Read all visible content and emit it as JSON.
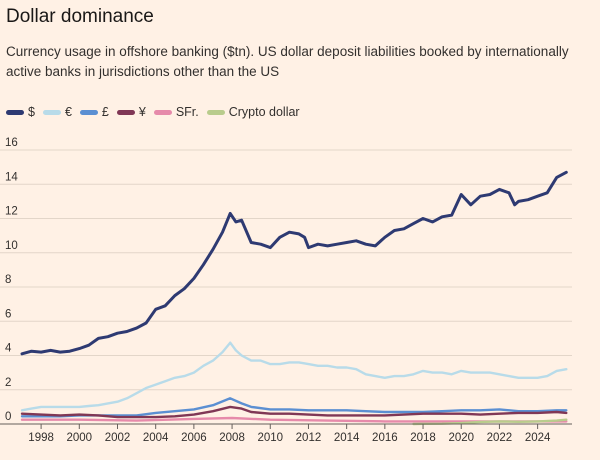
{
  "header": {
    "title": "Dollar dominance",
    "subtitle": "Currency usage in offshore banking ($tn). US dollar deposit liabilities booked by internationally active banks in jurisdictions other than the US"
  },
  "colors": {
    "background": "#fff1e5",
    "gridline": "#e3d6c9",
    "axis": "#66605c"
  },
  "chart_data": {
    "type": "line",
    "title": "Dollar dominance",
    "subtitle": "Currency usage in offshore banking ($tn). US dollar deposit liabilities booked by internationally active banks in jurisdictions other than the US",
    "xlabel": "",
    "ylabel": "",
    "xlim": [
      1997,
      2025.8
    ],
    "ylim": [
      0,
      16
    ],
    "yticks": [
      0,
      2,
      4,
      6,
      8,
      10,
      12,
      14,
      16
    ],
    "xticks": [
      "1998",
      "2000",
      "2002",
      "2004",
      "2006",
      "2008",
      "2010",
      "2012",
      "2014",
      "2016",
      "2018",
      "2020",
      "2022",
      "2024"
    ],
    "grid": true,
    "legend_position": "top-left",
    "series": [
      {
        "name": "$",
        "color": "#2e3a72",
        "points": [
          [
            1997.0,
            4.1
          ],
          [
            1997.5,
            4.25
          ],
          [
            1998.0,
            4.2
          ],
          [
            1998.5,
            4.3
          ],
          [
            1999.0,
            4.2
          ],
          [
            1999.5,
            4.25
          ],
          [
            2000.0,
            4.4
          ],
          [
            2000.5,
            4.6
          ],
          [
            2001.0,
            5.0
          ],
          [
            2001.5,
            5.1
          ],
          [
            2002.0,
            5.3
          ],
          [
            2002.5,
            5.4
          ],
          [
            2003.0,
            5.6
          ],
          [
            2003.5,
            5.9
          ],
          [
            2004.0,
            6.7
          ],
          [
            2004.5,
            6.9
          ],
          [
            2005.0,
            7.5
          ],
          [
            2005.5,
            7.9
          ],
          [
            2006.0,
            8.5
          ],
          [
            2006.5,
            9.3
          ],
          [
            2007.0,
            10.2
          ],
          [
            2007.5,
            11.2
          ],
          [
            2007.9,
            12.3
          ],
          [
            2008.2,
            11.8
          ],
          [
            2008.5,
            11.9
          ],
          [
            2009.0,
            10.6
          ],
          [
            2009.5,
            10.5
          ],
          [
            2010.0,
            10.3
          ],
          [
            2010.5,
            10.9
          ],
          [
            2011.0,
            11.2
          ],
          [
            2011.5,
            11.1
          ],
          [
            2011.8,
            10.9
          ],
          [
            2012.0,
            10.3
          ],
          [
            2012.5,
            10.5
          ],
          [
            2013.0,
            10.4
          ],
          [
            2013.5,
            10.5
          ],
          [
            2014.0,
            10.6
          ],
          [
            2014.5,
            10.7
          ],
          [
            2015.0,
            10.5
          ],
          [
            2015.5,
            10.4
          ],
          [
            2016.0,
            10.9
          ],
          [
            2016.5,
            11.3
          ],
          [
            2017.0,
            11.4
          ],
          [
            2017.5,
            11.7
          ],
          [
            2018.0,
            12.0
          ],
          [
            2018.5,
            11.8
          ],
          [
            2019.0,
            12.1
          ],
          [
            2019.5,
            12.2
          ],
          [
            2020.0,
            13.4
          ],
          [
            2020.5,
            12.8
          ],
          [
            2021.0,
            13.3
          ],
          [
            2021.5,
            13.4
          ],
          [
            2022.0,
            13.7
          ],
          [
            2022.5,
            13.5
          ],
          [
            2022.8,
            12.8
          ],
          [
            2023.0,
            13.0
          ],
          [
            2023.5,
            13.1
          ],
          [
            2024.0,
            13.3
          ],
          [
            2024.5,
            13.5
          ],
          [
            2025.0,
            14.4
          ],
          [
            2025.5,
            14.7
          ]
        ]
      },
      {
        "name": "€",
        "color": "#b8dbe9",
        "points": [
          [
            1997.0,
            0.8
          ],
          [
            1997.5,
            0.9
          ],
          [
            1998.0,
            1.0
          ],
          [
            1998.5,
            1.0
          ],
          [
            1999.0,
            1.0
          ],
          [
            1999.5,
            1.0
          ],
          [
            2000.0,
            1.0
          ],
          [
            2000.5,
            1.05
          ],
          [
            2001.0,
            1.1
          ],
          [
            2001.5,
            1.2
          ],
          [
            2002.0,
            1.3
          ],
          [
            2002.5,
            1.5
          ],
          [
            2003.0,
            1.8
          ],
          [
            2003.5,
            2.1
          ],
          [
            2004.0,
            2.3
          ],
          [
            2004.5,
            2.5
          ],
          [
            2005.0,
            2.7
          ],
          [
            2005.5,
            2.8
          ],
          [
            2006.0,
            3.0
          ],
          [
            2006.5,
            3.4
          ],
          [
            2007.0,
            3.7
          ],
          [
            2007.5,
            4.2
          ],
          [
            2007.9,
            4.75
          ],
          [
            2008.2,
            4.3
          ],
          [
            2008.5,
            4.0
          ],
          [
            2009.0,
            3.7
          ],
          [
            2009.5,
            3.7
          ],
          [
            2010.0,
            3.5
          ],
          [
            2010.5,
            3.5
          ],
          [
            2011.0,
            3.6
          ],
          [
            2011.5,
            3.6
          ],
          [
            2012.0,
            3.5
          ],
          [
            2012.5,
            3.4
          ],
          [
            2013.0,
            3.4
          ],
          [
            2013.5,
            3.3
          ],
          [
            2014.0,
            3.3
          ],
          [
            2014.5,
            3.2
          ],
          [
            2015.0,
            2.9
          ],
          [
            2015.5,
            2.8
          ],
          [
            2016.0,
            2.7
          ],
          [
            2016.5,
            2.8
          ],
          [
            2017.0,
            2.8
          ],
          [
            2017.5,
            2.9
          ],
          [
            2018.0,
            3.1
          ],
          [
            2018.5,
            3.0
          ],
          [
            2019.0,
            3.0
          ],
          [
            2019.5,
            2.9
          ],
          [
            2020.0,
            3.1
          ],
          [
            2020.5,
            3.0
          ],
          [
            2021.0,
            3.0
          ],
          [
            2021.5,
            3.0
          ],
          [
            2022.0,
            2.9
          ],
          [
            2022.5,
            2.8
          ],
          [
            2023.0,
            2.7
          ],
          [
            2023.5,
            2.7
          ],
          [
            2024.0,
            2.7
          ],
          [
            2024.5,
            2.8
          ],
          [
            2025.0,
            3.1
          ],
          [
            2025.5,
            3.2
          ]
        ]
      },
      {
        "name": "£",
        "color": "#5b8fd2",
        "points": [
          [
            1997.0,
            0.45
          ],
          [
            1998.0,
            0.45
          ],
          [
            1999.0,
            0.45
          ],
          [
            2000.0,
            0.5
          ],
          [
            2001.0,
            0.5
          ],
          [
            2002.0,
            0.5
          ],
          [
            2003.0,
            0.5
          ],
          [
            2004.0,
            0.65
          ],
          [
            2005.0,
            0.75
          ],
          [
            2006.0,
            0.85
          ],
          [
            2007.0,
            1.1
          ],
          [
            2007.9,
            1.5
          ],
          [
            2008.5,
            1.2
          ],
          [
            2009.0,
            1.0
          ],
          [
            2010.0,
            0.85
          ],
          [
            2011.0,
            0.85
          ],
          [
            2012.0,
            0.8
          ],
          [
            2013.0,
            0.8
          ],
          [
            2014.0,
            0.8
          ],
          [
            2015.0,
            0.75
          ],
          [
            2016.0,
            0.7
          ],
          [
            2017.0,
            0.7
          ],
          [
            2018.0,
            0.7
          ],
          [
            2019.0,
            0.75
          ],
          [
            2020.0,
            0.8
          ],
          [
            2021.0,
            0.8
          ],
          [
            2022.0,
            0.85
          ],
          [
            2023.0,
            0.75
          ],
          [
            2024.0,
            0.75
          ],
          [
            2025.0,
            0.8
          ],
          [
            2025.5,
            0.8
          ]
        ]
      },
      {
        "name": "¥",
        "color": "#803755",
        "points": [
          [
            1997.0,
            0.6
          ],
          [
            1998.0,
            0.55
          ],
          [
            1999.0,
            0.5
          ],
          [
            2000.0,
            0.55
          ],
          [
            2001.0,
            0.5
          ],
          [
            2002.0,
            0.4
          ],
          [
            2003.0,
            0.4
          ],
          [
            2004.0,
            0.4
          ],
          [
            2005.0,
            0.45
          ],
          [
            2006.0,
            0.55
          ],
          [
            2007.0,
            0.75
          ],
          [
            2007.9,
            1.0
          ],
          [
            2008.5,
            0.9
          ],
          [
            2009.0,
            0.7
          ],
          [
            2010.0,
            0.6
          ],
          [
            2011.0,
            0.6
          ],
          [
            2012.0,
            0.55
          ],
          [
            2013.0,
            0.5
          ],
          [
            2014.0,
            0.5
          ],
          [
            2015.0,
            0.5
          ],
          [
            2016.0,
            0.5
          ],
          [
            2017.0,
            0.55
          ],
          [
            2018.0,
            0.6
          ],
          [
            2019.0,
            0.6
          ],
          [
            2020.0,
            0.6
          ],
          [
            2021.0,
            0.55
          ],
          [
            2022.0,
            0.6
          ],
          [
            2023.0,
            0.65
          ],
          [
            2024.0,
            0.65
          ],
          [
            2025.0,
            0.7
          ],
          [
            2025.5,
            0.65
          ]
        ]
      },
      {
        "name": "SFr.",
        "color": "#e68aaa",
        "points": [
          [
            1997.0,
            0.25
          ],
          [
            2000.0,
            0.25
          ],
          [
            2003.0,
            0.2
          ],
          [
            2006.0,
            0.3
          ],
          [
            2008.0,
            0.35
          ],
          [
            2010.0,
            0.25
          ],
          [
            2013.0,
            0.2
          ],
          [
            2016.0,
            0.15
          ],
          [
            2019.0,
            0.15
          ],
          [
            2022.0,
            0.15
          ],
          [
            2025.5,
            0.15
          ]
        ]
      },
      {
        "name": "Crypto dollar",
        "color": "#b9cc8c",
        "points": [
          [
            2017.5,
            0.0
          ],
          [
            2018.0,
            0.01
          ],
          [
            2019.0,
            0.02
          ],
          [
            2020.0,
            0.05
          ],
          [
            2021.0,
            0.12
          ],
          [
            2022.0,
            0.15
          ],
          [
            2023.0,
            0.13
          ],
          [
            2024.0,
            0.15
          ],
          [
            2025.0,
            0.2
          ],
          [
            2025.5,
            0.25
          ]
        ]
      }
    ]
  }
}
